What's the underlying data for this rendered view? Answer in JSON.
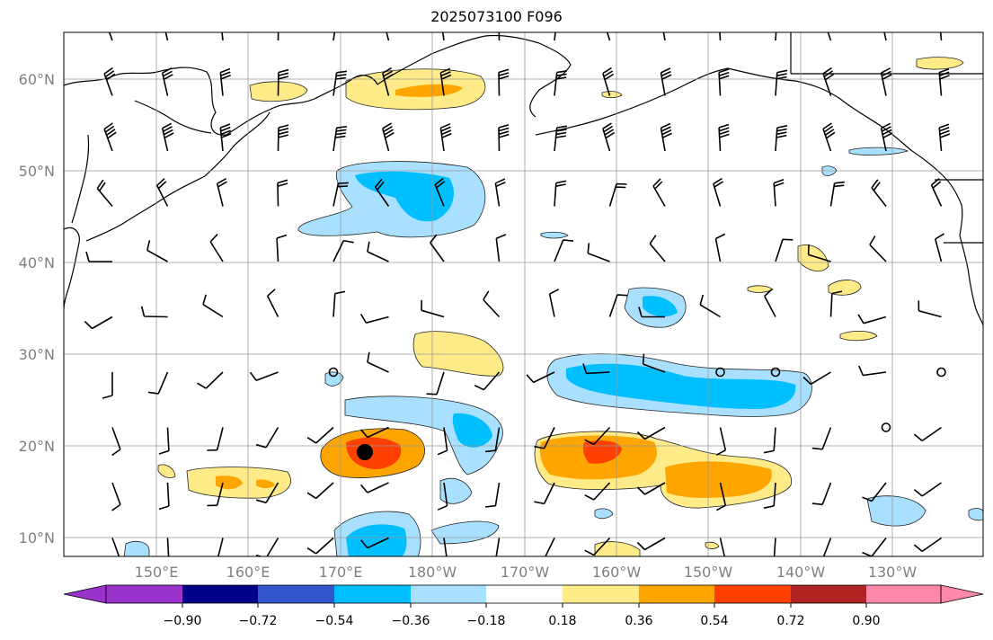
{
  "title": "2025073100 F096",
  "lat_labels": [
    "60°N",
    "50°N",
    "40°N",
    "30°N",
    "20°N",
    "10°N"
  ],
  "lon_labels": [
    "150°E",
    "160°E",
    "170°E",
    "180°W",
    "170°W",
    "160°W",
    "150°W",
    "140°W",
    "130°W"
  ],
  "colorbar": {
    "ticks": [
      "−0.90",
      "−0.72",
      "−0.54",
      "−0.36",
      "−0.18",
      "0.18",
      "0.36",
      "0.54",
      "0.72",
      "0.90"
    ],
    "colors": [
      "#9933cc",
      "#000088",
      "#3355cc",
      "#00bfff",
      "#aae0ff",
      "#ffffff",
      "#ffeb88",
      "#ffa500",
      "#ff4000",
      "#b22222",
      "#ff88aa"
    ]
  },
  "colors": {
    "neg_light": "#aae0ff",
    "neg_mid": "#00bfff",
    "pos_light": "#ffeb88",
    "pos_mid": "#ffa500",
    "pos_strong": "#ff4000"
  },
  "storm_marker": {
    "label": "storm-center",
    "lat": 19.5,
    "lon": 173.5
  }
}
